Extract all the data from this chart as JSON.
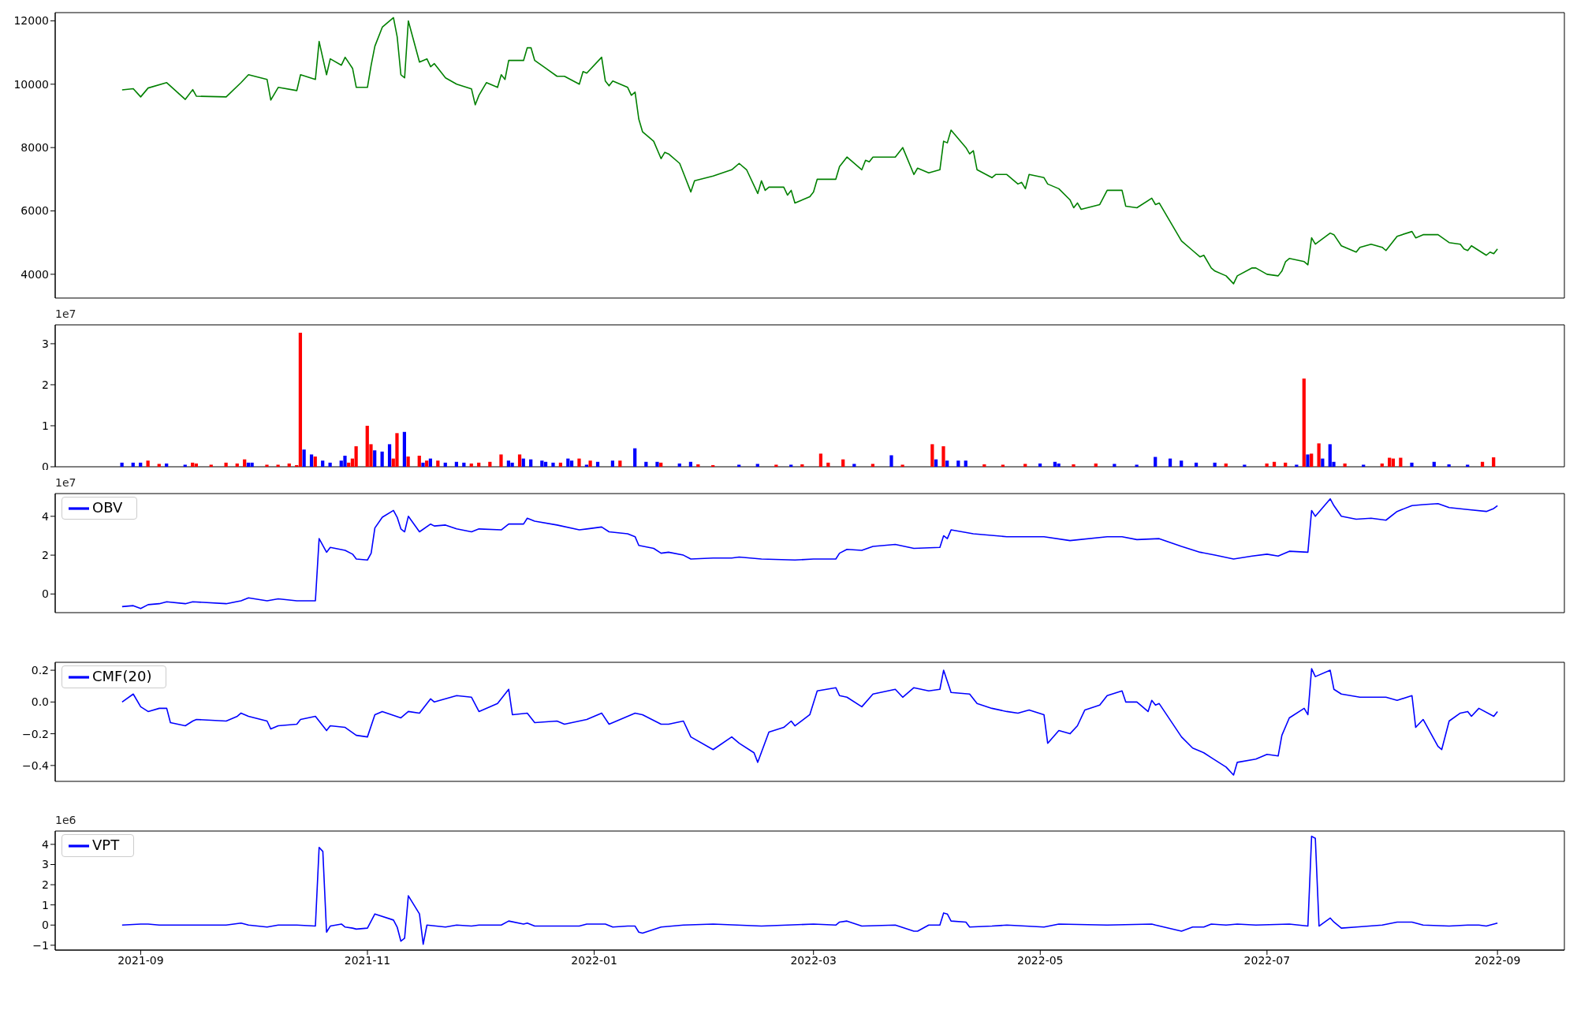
{
  "chart_data": [
    {
      "type": "line",
      "xlim": [
        "2021-08-09",
        "2022-09-19"
      ],
      "ylim": [
        3250,
        12260
      ],
      "yticks": [
        4000,
        6000,
        8000,
        10000,
        12000
      ],
      "tick_labels": "y",
      "series": [
        {
          "color": "#008000",
          "x": [
            "2021-08-27",
            "2021-08-30",
            "2021-09-01",
            "2021-09-03",
            "2021-09-08",
            "2021-09-13",
            "2021-09-15",
            "2021-09-16",
            "2021-09-24",
            "2021-09-28",
            "2021-09-30",
            "2021-10-05",
            "2021-10-06",
            "2021-10-08",
            "2021-10-13",
            "2021-10-14",
            "2021-10-18",
            "2021-10-19",
            "2021-10-21",
            "2021-10-22",
            "2021-10-25",
            "2021-10-26",
            "2021-10-28",
            "2021-10-29",
            "2021-11-01",
            "2021-11-02",
            "2021-11-03",
            "2021-11-05",
            "2021-11-08",
            "2021-11-09",
            "2021-11-10",
            "2021-11-11",
            "2021-11-12",
            "2021-11-15",
            "2021-11-17",
            "2021-11-18",
            "2021-11-19",
            "2021-11-22",
            "2021-11-25",
            "2021-11-29",
            "2021-11-30",
            "2021-12-01",
            "2021-12-03",
            "2021-12-06",
            "2021-12-07",
            "2021-12-08",
            "2021-12-09",
            "2021-12-13",
            "2021-12-14",
            "2021-12-15",
            "2021-12-16",
            "2021-12-19",
            "2021-12-22",
            "2021-12-24",
            "2021-12-28",
            "2021-12-29",
            "2021-12-30",
            "2022-01-03",
            "2022-01-04",
            "2022-01-05",
            "2022-01-06",
            "2022-01-10",
            "2022-01-11",
            "2022-01-12",
            "2022-01-13",
            "2022-01-14",
            "2022-01-17",
            "2022-01-19",
            "2022-01-20",
            "2022-01-21",
            "2022-01-24",
            "2022-01-25",
            "2022-01-27",
            "2022-01-28",
            "2022-02-02",
            "2022-02-07",
            "2022-02-09",
            "2022-02-11",
            "2022-02-14",
            "2022-02-15",
            "2022-02-16",
            "2022-02-17",
            "2022-02-21",
            "2022-02-22",
            "2022-02-23",
            "2022-02-24",
            "2022-02-28",
            "2022-03-01",
            "2022-03-02",
            "2022-03-07",
            "2022-03-08",
            "2022-03-10",
            "2022-03-14",
            "2022-03-15",
            "2022-03-16",
            "2022-03-17",
            "2022-03-23",
            "2022-03-25",
            "2022-03-28",
            "2022-03-29",
            "2022-04-01",
            "2022-04-04",
            "2022-04-05",
            "2022-04-06",
            "2022-04-07",
            "2022-04-11",
            "2022-04-12",
            "2022-04-13",
            "2022-04-14",
            "2022-04-18",
            "2022-04-19",
            "2022-04-22",
            "2022-04-25",
            "2022-04-26",
            "2022-04-27",
            "2022-04-28",
            "2022-05-02",
            "2022-05-03",
            "2022-05-06",
            "2022-05-09",
            "2022-05-10",
            "2022-05-11",
            "2022-05-12",
            "2022-05-17",
            "2022-05-19",
            "2022-05-23",
            "2022-05-24",
            "2022-05-27",
            "2022-05-31",
            "2022-06-01",
            "2022-06-02",
            "2022-06-08",
            "2022-06-11",
            "2022-06-13",
            "2022-06-14",
            "2022-06-16",
            "2022-06-17",
            "2022-06-20",
            "2022-06-22",
            "2022-06-23",
            "2022-06-27",
            "2022-06-28",
            "2022-07-01",
            "2022-07-04",
            "2022-07-05",
            "2022-07-06",
            "2022-07-07",
            "2022-07-11",
            "2022-07-12",
            "2022-07-13",
            "2022-07-14",
            "2022-07-18",
            "2022-07-19",
            "2022-07-21",
            "2022-07-25",
            "2022-07-26",
            "2022-07-29",
            "2022-08-01",
            "2022-08-02",
            "2022-08-05",
            "2022-08-09",
            "2022-08-10",
            "2022-08-12",
            "2022-08-16",
            "2022-08-19",
            "2022-08-22",
            "2022-08-23",
            "2022-08-24",
            "2022-08-25",
            "2022-08-29",
            "2022-08-30",
            "2022-08-31",
            "2022-09-01"
          ],
          "values": [
            9820,
            9860,
            9600,
            9880,
            10050,
            9520,
            9830,
            9620,
            9600,
            10050,
            10300,
            10150,
            9500,
            9900,
            9800,
            10300,
            10150,
            11350,
            10300,
            10800,
            10600,
            10850,
            10500,
            9900,
            9900,
            10600,
            11200,
            11800,
            12100,
            11500,
            10300,
            10200,
            12000,
            10700,
            10800,
            10550,
            10650,
            10200,
            10000,
            9850,
            9350,
            9650,
            10050,
            9900,
            10300,
            10150,
            10750,
            10750,
            11150,
            11150,
            10750,
            10500,
            10250,
            10250,
            10000,
            10400,
            10350,
            10850,
            10100,
            9950,
            10100,
            9900,
            9650,
            9750,
            8900,
            8500,
            8200,
            7650,
            7850,
            7800,
            7500,
            7200,
            6600,
            6950,
            7100,
            7300,
            7500,
            7300,
            6550,
            6950,
            6650,
            6750,
            6750,
            6500,
            6650,
            6250,
            6450,
            6600,
            7000,
            7000,
            7400,
            7700,
            7300,
            7600,
            7550,
            7700,
            7700,
            8000,
            7150,
            7350,
            7200,
            7300,
            8200,
            8150,
            8550,
            8000,
            7800,
            7900,
            7300,
            7050,
            7150,
            7150,
            6850,
            6900,
            6700,
            7150,
            7050,
            6850,
            6700,
            6350,
            6100,
            6250,
            6050,
            6200,
            6650,
            6650,
            6150,
            6100,
            6400,
            6200,
            6250,
            5050,
            4750,
            4550,
            4600,
            4200,
            4100,
            3950,
            3700,
            3950,
            4200,
            4200,
            4000,
            3950,
            4100,
            4400,
            4500,
            4400,
            4300,
            5150,
            4950,
            5300,
            5250,
            4900,
            4700,
            4850,
            4950,
            4850,
            4750,
            5200,
            5350,
            5150,
            5250,
            5250,
            5000,
            4950,
            4800,
            4750,
            4900,
            4600,
            4700,
            4650,
            4800
          ]
        }
      ]
    },
    {
      "type": "bar",
      "xlim": [
        "2021-08-09",
        "2022-09-19"
      ],
      "ylim": [
        0,
        3.46
      ],
      "yticks": [
        0,
        1,
        2,
        3
      ],
      "tick_labels": "y",
      "annotations": [
        "1e7"
      ],
      "x": [
        "2021-08-27",
        "2021-08-30",
        "2021-09-01",
        "2021-09-03",
        "2021-09-06",
        "2021-09-08",
        "2021-09-13",
        "2021-09-15",
        "2021-09-16",
        "2021-09-20",
        "2021-09-24",
        "2021-09-27",
        "2021-09-29",
        "2021-09-30",
        "2021-10-01",
        "2021-10-05",
        "2021-10-08",
        "2021-10-11",
        "2021-10-13",
        "2021-10-14",
        "2021-10-15",
        "2021-10-17",
        "2021-10-18",
        "2021-10-20",
        "2021-10-22",
        "2021-10-25",
        "2021-10-26",
        "2021-10-27",
        "2021-10-28",
        "2021-10-29",
        "2021-11-01",
        "2021-11-02",
        "2021-11-03",
        "2021-11-05",
        "2021-11-07",
        "2021-11-08",
        "2021-11-09",
        "2021-11-11",
        "2021-11-12",
        "2021-11-15",
        "2021-11-16",
        "2021-11-17",
        "2021-11-18",
        "2021-11-20",
        "2021-11-22",
        "2021-11-25",
        "2021-11-27",
        "2021-11-29",
        "2021-12-01",
        "2021-12-04",
        "2021-12-07",
        "2021-12-09",
        "2021-12-10",
        "2021-12-12",
        "2021-12-13",
        "2021-12-15",
        "2021-12-18",
        "2021-12-19",
        "2021-12-21",
        "2021-12-23",
        "2021-12-25",
        "2021-12-26",
        "2021-12-28",
        "2021-12-30",
        "2021-12-31",
        "2022-01-02",
        "2022-01-06",
        "2022-01-08",
        "2022-01-12",
        "2022-01-15",
        "2022-01-18",
        "2022-01-19",
        "2022-01-24",
        "2022-01-27",
        "2022-01-29",
        "2022-02-02",
        "2022-02-09",
        "2022-02-14",
        "2022-02-19",
        "2022-02-23",
        "2022-02-26",
        "2022-03-03",
        "2022-03-05",
        "2022-03-09",
        "2022-03-12",
        "2022-03-17",
        "2022-03-22",
        "2022-03-25",
        "2022-04-02",
        "2022-04-03",
        "2022-04-05",
        "2022-04-06",
        "2022-04-09",
        "2022-04-11",
        "2022-04-16",
        "2022-04-21",
        "2022-04-27",
        "2022-05-01",
        "2022-05-05",
        "2022-05-06",
        "2022-05-10",
        "2022-05-16",
        "2022-05-21",
        "2022-05-27",
        "2022-06-01",
        "2022-06-05",
        "2022-06-08",
        "2022-06-12",
        "2022-06-17",
        "2022-06-20",
        "2022-06-25",
        "2022-07-01",
        "2022-07-03",
        "2022-07-06",
        "2022-07-09",
        "2022-07-11",
        "2022-07-12",
        "2022-07-13",
        "2022-07-15",
        "2022-07-16",
        "2022-07-18",
        "2022-07-19",
        "2022-07-22",
        "2022-07-27",
        "2022-08-01",
        "2022-08-03",
        "2022-08-04",
        "2022-08-06",
        "2022-08-09",
        "2022-08-15",
        "2022-08-19",
        "2022-08-24",
        "2022-08-28",
        "2022-08-31"
      ],
      "values": [
        0.1,
        0.1,
        0.1,
        0.15,
        0.07,
        0.08,
        0.05,
        0.1,
        0.08,
        0.05,
        0.1,
        0.08,
        0.18,
        0.1,
        0.1,
        0.05,
        0.05,
        0.08,
        0.04,
        3.27,
        0.42,
        0.3,
        0.25,
        0.15,
        0.1,
        0.15,
        0.27,
        0.1,
        0.2,
        0.5,
        1.0,
        0.55,
        0.4,
        0.37,
        0.55,
        0.2,
        0.82,
        0.85,
        0.25,
        0.27,
        0.1,
        0.15,
        0.2,
        0.15,
        0.1,
        0.12,
        0.1,
        0.08,
        0.1,
        0.12,
        0.3,
        0.15,
        0.1,
        0.3,
        0.2,
        0.18,
        0.15,
        0.12,
        0.1,
        0.1,
        0.2,
        0.15,
        0.2,
        0.05,
        0.15,
        0.12,
        0.15,
        0.15,
        0.45,
        0.12,
        0.12,
        0.1,
        0.08,
        0.12,
        0.06,
        0.04,
        0.05,
        0.07,
        0.05,
        0.05,
        0.06,
        0.32,
        0.1,
        0.18,
        0.07,
        0.07,
        0.28,
        0.05,
        0.55,
        0.18,
        0.5,
        0.15,
        0.15,
        0.15,
        0.06,
        0.05,
        0.07,
        0.08,
        0.12,
        0.08,
        0.06,
        0.08,
        0.07,
        0.05,
        0.24,
        0.2,
        0.15,
        0.1,
        0.1,
        0.08,
        0.05,
        0.08,
        0.12,
        0.1,
        0.05,
        2.15,
        0.3,
        0.32,
        0.57,
        0.2,
        0.55,
        0.12,
        0.08,
        0.05,
        0.08,
        0.22,
        0.2,
        0.22,
        0.1,
        0.12,
        0.06,
        0.05,
        0.12,
        0.23
      ],
      "colors": [
        "#0000ff",
        "#0000ff",
        "#0000ff",
        "#ff0000",
        "#ff0000",
        "#0000ff",
        "#0000ff",
        "#ff0000",
        "#ff0000",
        "#ff0000",
        "#ff0000",
        "#ff0000",
        "#ff0000",
        "#0000ff",
        "#0000ff",
        "#ff0000",
        "#ff0000",
        "#ff0000",
        "#ff0000",
        "#ff0000",
        "#0000ff",
        "#0000ff",
        "#ff0000",
        "#0000ff",
        "#0000ff",
        "#0000ff",
        "#0000ff",
        "#ff0000",
        "#ff0000",
        "#ff0000",
        "#ff0000",
        "#ff0000",
        "#0000ff",
        "#0000ff",
        "#0000ff",
        "#ff0000",
        "#ff0000",
        "#0000ff",
        "#ff0000",
        "#ff0000",
        "#0000ff",
        "#ff0000",
        "#0000ff",
        "#ff0000",
        "#0000ff",
        "#0000ff",
        "#0000ff",
        "#ff0000",
        "#ff0000",
        "#ff0000",
        "#ff0000",
        "#0000ff",
        "#0000ff",
        "#ff0000",
        "#0000ff",
        "#0000ff",
        "#0000ff",
        "#0000ff",
        "#0000ff",
        "#ff0000",
        "#0000ff",
        "#0000ff",
        "#ff0000",
        "#0000ff",
        "#ff0000",
        "#0000ff",
        "#0000ff",
        "#ff0000",
        "#0000ff",
        "#0000ff",
        "#0000ff",
        "#ff0000",
        "#0000ff",
        "#0000ff",
        "#ff0000",
        "#ff0000",
        "#0000ff",
        "#0000ff",
        "#ff0000",
        "#0000ff",
        "#ff0000",
        "#ff0000",
        "#ff0000",
        "#ff0000",
        "#0000ff",
        "#ff0000",
        "#0000ff",
        "#ff0000",
        "#ff0000",
        "#0000ff",
        "#ff0000",
        "#0000ff",
        "#0000ff",
        "#0000ff",
        "#ff0000",
        "#ff0000",
        "#ff0000",
        "#0000ff",
        "#0000ff",
        "#0000ff",
        "#ff0000",
        "#ff0000",
        "#0000ff",
        "#0000ff",
        "#0000ff",
        "#0000ff",
        "#0000ff",
        "#0000ff",
        "#0000ff",
        "#ff0000",
        "#0000ff",
        "#ff0000",
        "#ff0000",
        "#ff0000",
        "#0000ff",
        "#ff0000",
        "#0000ff",
        "#ff0000",
        "#ff0000",
        "#0000ff",
        "#0000ff",
        "#0000ff",
        "#ff0000",
        "#0000ff",
        "#ff0000",
        "#ff0000",
        "#ff0000",
        "#ff0000",
        "#0000ff",
        "#0000ff",
        "#0000ff",
        "#0000ff",
        "#ff0000",
        "#ff0000"
      ]
    },
    {
      "type": "line",
      "xlim": [
        "2021-08-09",
        "2022-09-19"
      ],
      "ylim": [
        -0.96,
        5.17
      ],
      "yticks": [
        0,
        2,
        4
      ],
      "tick_labels": "y",
      "annotations": [
        "1e7"
      ],
      "legend": "top left",
      "series": [
        {
          "name": "OBV",
          "color": "#0000ff",
          "x": [
            "2021-08-27",
            "2021-08-30",
            "2021-09-01",
            "2021-09-03",
            "2021-09-06",
            "2021-09-08",
            "2021-09-13",
            "2021-09-15",
            "2021-09-24",
            "2021-09-28",
            "2021-09-30",
            "2021-10-05",
            "2021-10-08",
            "2021-10-13",
            "2021-10-18",
            "2021-10-19",
            "2021-10-21",
            "2021-10-22",
            "2021-10-26",
            "2021-10-28",
            "2021-10-29",
            "2021-11-01",
            "2021-11-02",
            "2021-11-03",
            "2021-11-05",
            "2021-11-08",
            "2021-11-09",
            "2021-11-10",
            "2021-11-11",
            "2021-11-12",
            "2021-11-15",
            "2021-11-18",
            "2021-11-19",
            "2021-11-22",
            "2021-11-25",
            "2021-11-29",
            "2021-12-01",
            "2021-12-07",
            "2021-12-09",
            "2021-12-13",
            "2021-12-14",
            "2021-12-16",
            "2021-12-22",
            "2021-12-28",
            "2021-12-30",
            "2022-01-03",
            "2022-01-05",
            "2022-01-10",
            "2022-01-12",
            "2022-01-13",
            "2022-01-17",
            "2022-01-19",
            "2022-01-21",
            "2022-01-25",
            "2022-01-27",
            "2022-02-02",
            "2022-02-07",
            "2022-02-09",
            "2022-02-15",
            "2022-02-24",
            "2022-03-01",
            "2022-03-07",
            "2022-03-08",
            "2022-03-10",
            "2022-03-14",
            "2022-03-17",
            "2022-03-23",
            "2022-03-28",
            "2022-04-04",
            "2022-04-05",
            "2022-04-06",
            "2022-04-07",
            "2022-04-13",
            "2022-04-22",
            "2022-05-02",
            "2022-05-09",
            "2022-05-19",
            "2022-05-23",
            "2022-05-27",
            "2022-06-02",
            "2022-06-08",
            "2022-06-13",
            "2022-06-17",
            "2022-06-22",
            "2022-06-27",
            "2022-07-01",
            "2022-07-04",
            "2022-07-07",
            "2022-07-12",
            "2022-07-13",
            "2022-07-14",
            "2022-07-18",
            "2022-07-19",
            "2022-07-21",
            "2022-07-25",
            "2022-07-29",
            "2022-08-02",
            "2022-08-05",
            "2022-08-09",
            "2022-08-12",
            "2022-08-16",
            "2022-08-19",
            "2022-08-24",
            "2022-08-29",
            "2022-08-31",
            "2022-09-01"
          ],
          "values": [
            -0.65,
            -0.6,
            -0.75,
            -0.55,
            -0.5,
            -0.4,
            -0.5,
            -0.4,
            -0.5,
            -0.35,
            -0.2,
            -0.35,
            -0.25,
            -0.35,
            -0.35,
            2.85,
            2.15,
            2.4,
            2.25,
            2.05,
            1.8,
            1.75,
            2.1,
            3.4,
            3.95,
            4.3,
            3.95,
            3.35,
            3.2,
            4.0,
            3.2,
            3.6,
            3.5,
            3.55,
            3.35,
            3.2,
            3.35,
            3.3,
            3.6,
            3.6,
            3.9,
            3.75,
            3.55,
            3.3,
            3.35,
            3.45,
            3.2,
            3.1,
            2.95,
            2.5,
            2.35,
            2.1,
            2.15,
            2.0,
            1.8,
            1.85,
            1.85,
            1.9,
            1.8,
            1.75,
            1.8,
            1.8,
            2.1,
            2.3,
            2.25,
            2.45,
            2.55,
            2.35,
            2.4,
            3.0,
            2.85,
            3.3,
            3.1,
            2.95,
            2.95,
            2.75,
            2.95,
            2.95,
            2.8,
            2.85,
            2.45,
            2.15,
            2.0,
            1.8,
            1.95,
            2.05,
            1.95,
            2.2,
            2.15,
            4.3,
            4.0,
            4.9,
            4.55,
            4.0,
            3.85,
            3.9,
            3.8,
            4.25,
            4.55,
            4.6,
            4.65,
            4.45,
            4.35,
            4.25,
            4.4,
            4.55
          ]
        }
      ]
    },
    {
      "type": "line",
      "xlim": [
        "2021-08-09",
        "2022-09-19"
      ],
      "ylim": [
        -0.5,
        0.25
      ],
      "yticks": [
        {
          "value": -0.4,
          "label": "−0.4"
        },
        {
          "value": -0.2,
          "label": "−0.2"
        },
        {
          "value": 0,
          "label": "0.0"
        },
        {
          "value": 0.2,
          "label": "0.2"
        }
      ],
      "tick_labels": "y",
      "legend": "top left",
      "series": [
        {
          "name": "CMF(20)",
          "color": "#0000ff",
          "x": [
            "2021-08-27",
            "2021-08-30",
            "2021-09-01",
            "2021-09-03",
            "2021-09-06",
            "2021-09-08",
            "2021-09-09",
            "2021-09-13",
            "2021-09-15",
            "2021-09-16",
            "2021-09-24",
            "2021-09-27",
            "2021-09-28",
            "2021-09-30",
            "2021-10-05",
            "2021-10-06",
            "2021-10-08",
            "2021-10-13",
            "2021-10-14",
            "2021-10-18",
            "2021-10-21",
            "2021-10-22",
            "2021-10-26",
            "2021-10-29",
            "2021-11-01",
            "2021-11-03",
            "2021-11-05",
            "2021-11-10",
            "2021-11-12",
            "2021-11-15",
            "2021-11-18",
            "2021-11-19",
            "2021-11-25",
            "2021-11-29",
            "2021-12-01",
            "2021-12-06",
            "2021-12-09",
            "2021-12-10",
            "2021-12-14",
            "2021-12-16",
            "2021-12-22",
            "2021-12-24",
            "2021-12-30",
            "2022-01-03",
            "2022-01-05",
            "2022-01-12",
            "2022-01-14",
            "2022-01-19",
            "2022-01-21",
            "2022-01-25",
            "2022-01-27",
            "2022-02-02",
            "2022-02-07",
            "2022-02-09",
            "2022-02-13",
            "2022-02-14",
            "2022-02-17",
            "2022-02-21",
            "2022-02-23",
            "2022-02-24",
            "2022-02-28",
            "2022-03-02",
            "2022-03-07",
            "2022-03-08",
            "2022-03-10",
            "2022-03-14",
            "2022-03-17",
            "2022-03-23",
            "2022-03-25",
            "2022-03-28",
            "2022-04-01",
            "2022-04-04",
            "2022-04-05",
            "2022-04-07",
            "2022-04-12",
            "2022-04-14",
            "2022-04-18",
            "2022-04-22",
            "2022-04-25",
            "2022-04-28",
            "2022-05-02",
            "2022-05-03",
            "2022-05-06",
            "2022-05-09",
            "2022-05-11",
            "2022-05-13",
            "2022-05-17",
            "2022-05-19",
            "2022-05-23",
            "2022-05-24",
            "2022-05-27",
            "2022-05-30",
            "2022-05-31",
            "2022-06-01",
            "2022-06-02",
            "2022-06-08",
            "2022-06-11",
            "2022-06-14",
            "2022-06-16",
            "2022-06-20",
            "2022-06-22",
            "2022-06-23",
            "2022-06-28",
            "2022-07-01",
            "2022-07-04",
            "2022-07-05",
            "2022-07-07",
            "2022-07-11",
            "2022-07-12",
            "2022-07-13",
            "2022-07-14",
            "2022-07-18",
            "2022-07-19",
            "2022-07-21",
            "2022-07-26",
            "2022-07-29",
            "2022-08-02",
            "2022-08-05",
            "2022-08-09",
            "2022-08-10",
            "2022-08-12",
            "2022-08-16",
            "2022-08-17",
            "2022-08-19",
            "2022-08-22",
            "2022-08-24",
            "2022-08-25",
            "2022-08-27",
            "2022-08-31",
            "2022-09-01"
          ],
          "values": [
            0.0,
            0.05,
            -0.03,
            -0.06,
            -0.04,
            -0.04,
            -0.13,
            -0.15,
            -0.12,
            -0.11,
            -0.12,
            -0.09,
            -0.07,
            -0.09,
            -0.12,
            -0.17,
            -0.15,
            -0.14,
            -0.11,
            -0.09,
            -0.18,
            -0.15,
            -0.16,
            -0.21,
            -0.22,
            -0.08,
            -0.06,
            -0.1,
            -0.06,
            -0.07,
            0.02,
            0.0,
            0.04,
            0.03,
            -0.06,
            -0.01,
            0.08,
            -0.08,
            -0.07,
            -0.13,
            -0.12,
            -0.14,
            -0.11,
            -0.07,
            -0.14,
            -0.07,
            -0.08,
            -0.14,
            -0.14,
            -0.12,
            -0.22,
            -0.3,
            -0.22,
            -0.26,
            -0.32,
            -0.38,
            -0.19,
            -0.16,
            -0.12,
            -0.15,
            -0.08,
            0.07,
            0.09,
            0.04,
            0.03,
            -0.03,
            0.05,
            0.08,
            0.03,
            0.09,
            0.07,
            0.08,
            0.2,
            0.06,
            0.05,
            -0.01,
            -0.04,
            -0.06,
            -0.07,
            -0.05,
            -0.08,
            -0.26,
            -0.18,
            -0.2,
            -0.15,
            -0.05,
            -0.02,
            0.04,
            0.07,
            0.0,
            0.0,
            -0.06,
            0.01,
            -0.02,
            -0.01,
            -0.22,
            -0.29,
            -0.32,
            -0.35,
            -0.41,
            -0.46,
            -0.38,
            -0.36,
            -0.33,
            -0.34,
            -0.21,
            -0.1,
            -0.04,
            -0.08,
            0.21,
            0.16,
            0.2,
            0.08,
            0.05,
            0.03,
            0.03,
            0.03,
            0.01,
            0.04,
            -0.16,
            -0.11,
            -0.28,
            -0.3,
            -0.12,
            -0.07,
            -0.06,
            -0.09,
            -0.04,
            -0.09,
            -0.06
          ]
        }
      ]
    },
    {
      "type": "line",
      "xlim": [
        "2021-08-09",
        "2022-09-19"
      ],
      "ylim": [
        -1.24,
        4.66
      ],
      "yticks": [
        {
          "value": -1,
          "label": "−1"
        },
        0,
        1,
        2,
        3,
        4
      ],
      "xticks": [
        "2021-09",
        "2021-11",
        "2022-01",
        "2022-03",
        "2022-05",
        "2022-07",
        "2022-09"
      ],
      "annotations": [
        "1e6"
      ],
      "legend": "top left",
      "series": [
        {
          "name": "VPT",
          "color": "#0000ff",
          "x": [
            "2021-08-27",
            "2021-09-01",
            "2021-09-03",
            "2021-09-06",
            "2021-09-24",
            "2021-09-28",
            "2021-09-30",
            "2021-10-05",
            "2021-10-08",
            "2021-10-13",
            "2021-10-18",
            "2021-10-19",
            "2021-10-20",
            "2021-10-21",
            "2021-10-22",
            "2021-10-25",
            "2021-10-26",
            "2021-10-28",
            "2021-10-29",
            "2021-11-01",
            "2021-11-03",
            "2021-11-08",
            "2021-11-09",
            "2021-11-10",
            "2021-11-11",
            "2021-11-12",
            "2021-11-15",
            "2021-11-16",
            "2021-11-17",
            "2021-11-22",
            "2021-11-25",
            "2021-11-29",
            "2021-12-01",
            "2021-12-07",
            "2021-12-09",
            "2021-12-13",
            "2021-12-14",
            "2021-12-16",
            "2021-12-28",
            "2021-12-30",
            "2022-01-04",
            "2022-01-06",
            "2022-01-10",
            "2022-01-12",
            "2022-01-13",
            "2022-01-14",
            "2022-01-19",
            "2022-01-25",
            "2022-02-02",
            "2022-02-15",
            "2022-03-01",
            "2022-03-07",
            "2022-03-08",
            "2022-03-10",
            "2022-03-14",
            "2022-03-23",
            "2022-03-28",
            "2022-03-29",
            "2022-04-01",
            "2022-04-04",
            "2022-04-05",
            "2022-04-06",
            "2022-04-07",
            "2022-04-11",
            "2022-04-12",
            "2022-04-18",
            "2022-04-22",
            "2022-05-02",
            "2022-05-06",
            "2022-05-19",
            "2022-05-31",
            "2022-06-01",
            "2022-06-08",
            "2022-06-11",
            "2022-06-14",
            "2022-06-16",
            "2022-06-20",
            "2022-06-23",
            "2022-06-28",
            "2022-07-07",
            "2022-07-12",
            "2022-07-13",
            "2022-07-14",
            "2022-07-15",
            "2022-07-18",
            "2022-07-19",
            "2022-07-21",
            "2022-07-25",
            "2022-08-01",
            "2022-08-05",
            "2022-08-09",
            "2022-08-12",
            "2022-08-19",
            "2022-08-24",
            "2022-08-27",
            "2022-08-29",
            "2022-09-01"
          ],
          "values": [
            0,
            0.05,
            0.05,
            0,
            0,
            0.1,
            0,
            -0.1,
            0,
            0,
            -0.05,
            3.85,
            3.65,
            -0.35,
            -0.05,
            0.05,
            -0.1,
            -0.15,
            -0.2,
            -0.15,
            0.55,
            0.25,
            -0.1,
            -0.8,
            -0.65,
            1.45,
            0.55,
            -0.95,
            0,
            -0.1,
            0,
            -0.05,
            0,
            0,
            0.2,
            0.05,
            0.1,
            -0.05,
            -0.05,
            0.05,
            0.05,
            -0.1,
            -0.05,
            -0.05,
            -0.35,
            -0.4,
            -0.1,
            0,
            0.05,
            -0.05,
            0.05,
            0,
            0.15,
            0.2,
            -0.05,
            0,
            -0.3,
            -0.3,
            0,
            0,
            0.6,
            0.55,
            0.2,
            0.15,
            -0.1,
            -0.05,
            0,
            -0.1,
            0.05,
            0,
            0.05,
            0,
            -0.3,
            -0.1,
            -0.1,
            0.05,
            0,
            0.05,
            0,
            0.05,
            -0.05,
            4.4,
            4.3,
            -0.05,
            0.35,
            0.15,
            -0.15,
            -0.1,
            0,
            0.15,
            0.15,
            0,
            -0.05,
            0,
            0,
            -0.05,
            0.1
          ]
        }
      ]
    }
  ]
}
